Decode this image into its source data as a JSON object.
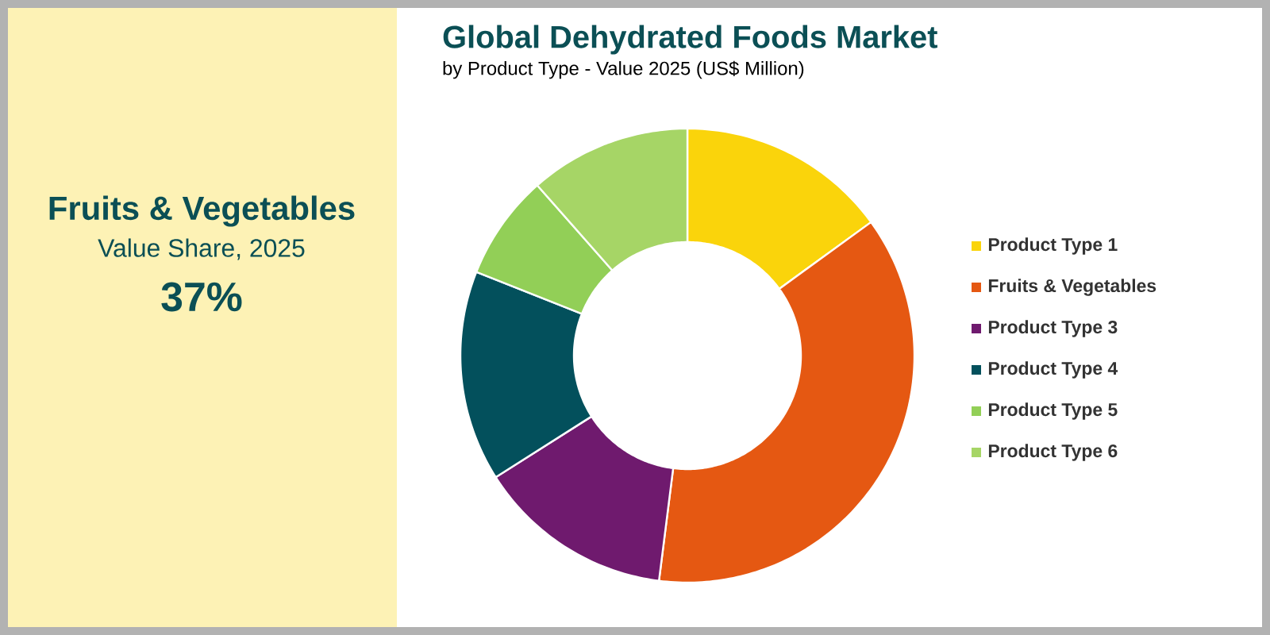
{
  "chart_data": {
    "type": "donut",
    "title": "Global Dehydrated Foods Market",
    "subtitle": "by Product Type - Value 2025 (US$ Million)",
    "categories": [
      "Product Type 1",
      "Fruits & Vegetables",
      "Product Type 3",
      "Product Type 4",
      "Product Type 5",
      "Product Type 6"
    ],
    "values": [
      15,
      37,
      14,
      15,
      7.5,
      11.5
    ],
    "colors": [
      "#fad40b",
      "#e55812",
      "#6f1a6e",
      "#03505c",
      "#92cf57",
      "#a6d566"
    ],
    "legend": "right",
    "annotations": [
      "Fruits & Vegetables",
      "Value Share, 2025",
      "37%"
    ]
  }
}
